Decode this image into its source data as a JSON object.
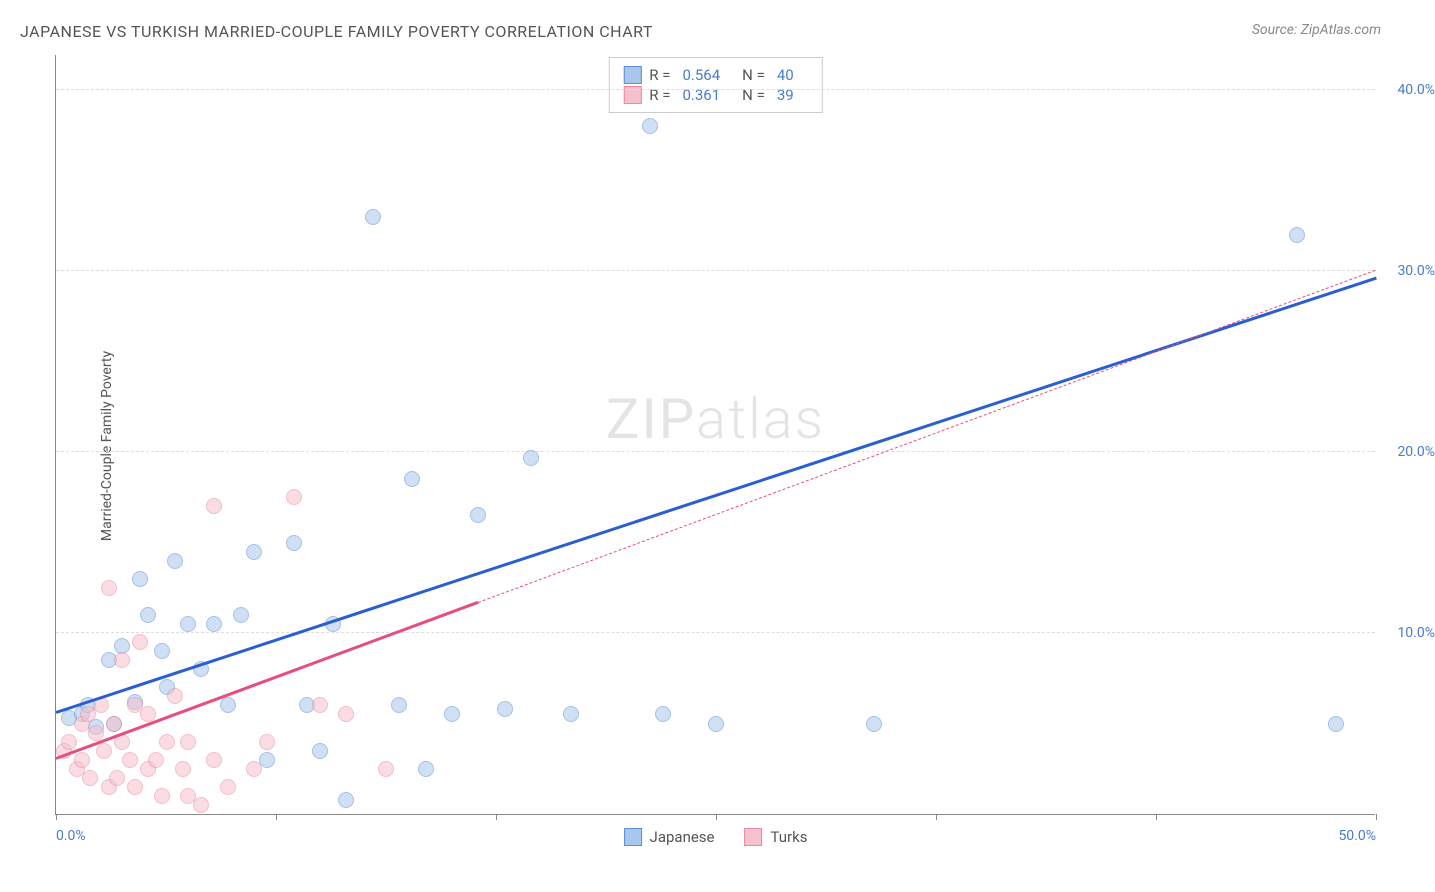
{
  "title": "JAPANESE VS TURKISH MARRIED-COUPLE FAMILY POVERTY CORRELATION CHART",
  "source_label": "Source:",
  "source_name": "ZipAtlas.com",
  "ylabel": "Married-Couple Family Poverty",
  "watermark_zip": "ZIP",
  "watermark_atlas": "atlas",
  "chart": {
    "type": "scatter",
    "xlim": [
      0,
      50
    ],
    "ylim": [
      0,
      42
    ],
    "xtick_positions": [
      0,
      8.33,
      16.67,
      25,
      33.33,
      41.67,
      50
    ],
    "xtick_labels_shown": {
      "0": "0.0%",
      "50": "50.0%"
    },
    "ytick_positions": [
      10,
      20,
      30,
      40
    ],
    "ytick_labels": [
      "10.0%",
      "20.0%",
      "30.0%",
      "40.0%"
    ],
    "grid_color": "#dddddd",
    "axis_color": "#888888",
    "background_color": "#ffffff",
    "tick_label_color": "#4a7bd0",
    "point_radius": 8,
    "series": [
      {
        "name": "Japanese",
        "fill_color": "#a9c6ec",
        "stroke_color": "#5b8fd6",
        "line_color": "#2a5fcf",
        "line_width": 3,
        "line_dash": "solid",
        "R": "0.564",
        "N": "40",
        "points": [
          [
            0.5,
            5.3
          ],
          [
            1.0,
            5.5
          ],
          [
            1.2,
            6.0
          ],
          [
            1.5,
            4.8
          ],
          [
            2.0,
            8.5
          ],
          [
            2.2,
            5.0
          ],
          [
            2.5,
            9.3
          ],
          [
            3.0,
            6.2
          ],
          [
            3.2,
            13.0
          ],
          [
            3.5,
            11.0
          ],
          [
            4.0,
            9.0
          ],
          [
            4.2,
            7.0
          ],
          [
            4.5,
            14.0
          ],
          [
            5.0,
            10.5
          ],
          [
            5.5,
            8.0
          ],
          [
            6.0,
            10.5
          ],
          [
            6.5,
            6.0
          ],
          [
            7.0,
            11.0
          ],
          [
            7.5,
            14.5
          ],
          [
            8.0,
            3.0
          ],
          [
            9.0,
            15.0
          ],
          [
            9.5,
            6.0
          ],
          [
            10.0,
            3.5
          ],
          [
            10.5,
            10.5
          ],
          [
            11.0,
            0.8
          ],
          [
            12.0,
            33.0
          ],
          [
            13.0,
            6.0
          ],
          [
            13.5,
            18.5
          ],
          [
            14.0,
            2.5
          ],
          [
            15.0,
            5.5
          ],
          [
            16.0,
            16.5
          ],
          [
            17.0,
            5.8
          ],
          [
            18.0,
            19.7
          ],
          [
            19.5,
            5.5
          ],
          [
            22.5,
            38.0
          ],
          [
            23.0,
            5.5
          ],
          [
            25.0,
            5.0
          ],
          [
            31.0,
            5.0
          ],
          [
            47.0,
            32.0
          ],
          [
            48.5,
            5.0
          ]
        ],
        "trend": {
          "x1": 0,
          "y1": 5.5,
          "x2": 50,
          "y2": 29.5
        }
      },
      {
        "name": "Turks",
        "fill_color": "#f6c1cc",
        "stroke_color": "#e98aa2",
        "line_color": "#e64f7b",
        "line_width": 3,
        "line_dash": "solid_then_dash",
        "solid_until_x": 16,
        "R": "0.361",
        "N": "39",
        "points": [
          [
            0.3,
            3.5
          ],
          [
            0.5,
            4.0
          ],
          [
            0.8,
            2.5
          ],
          [
            1.0,
            5.0
          ],
          [
            1.0,
            3.0
          ],
          [
            1.2,
            5.5
          ],
          [
            1.3,
            2.0
          ],
          [
            1.5,
            4.5
          ],
          [
            1.7,
            6.0
          ],
          [
            1.8,
            3.5
          ],
          [
            2.0,
            1.5
          ],
          [
            2.0,
            12.5
          ],
          [
            2.2,
            5.0
          ],
          [
            2.3,
            2.0
          ],
          [
            2.5,
            4.0
          ],
          [
            2.5,
            8.5
          ],
          [
            2.8,
            3.0
          ],
          [
            3.0,
            6.0
          ],
          [
            3.0,
            1.5
          ],
          [
            3.2,
            9.5
          ],
          [
            3.5,
            2.5
          ],
          [
            3.5,
            5.5
          ],
          [
            3.8,
            3.0
          ],
          [
            4.0,
            1.0
          ],
          [
            4.2,
            4.0
          ],
          [
            4.5,
            6.5
          ],
          [
            4.8,
            2.5
          ],
          [
            5.0,
            4.0
          ],
          [
            5.0,
            1.0
          ],
          [
            5.5,
            0.5
          ],
          [
            6.0,
            3.0
          ],
          [
            6.0,
            17.0
          ],
          [
            6.5,
            1.5
          ],
          [
            7.5,
            2.5
          ],
          [
            8.0,
            4.0
          ],
          [
            9.0,
            17.5
          ],
          [
            10.0,
            6.0
          ],
          [
            11.0,
            5.5
          ],
          [
            12.5,
            2.5
          ]
        ],
        "trend": {
          "x1": 0,
          "y1": 3.0,
          "x2": 50,
          "y2": 30.0
        }
      }
    ]
  },
  "legend_bottom": [
    {
      "label": "Japanese",
      "fill": "#a9c6ec",
      "stroke": "#5b8fd6"
    },
    {
      "label": "Turks",
      "fill": "#f6c1cc",
      "stroke": "#e98aa2"
    }
  ],
  "legend_r_label": "R =",
  "legend_n_label": "N ="
}
